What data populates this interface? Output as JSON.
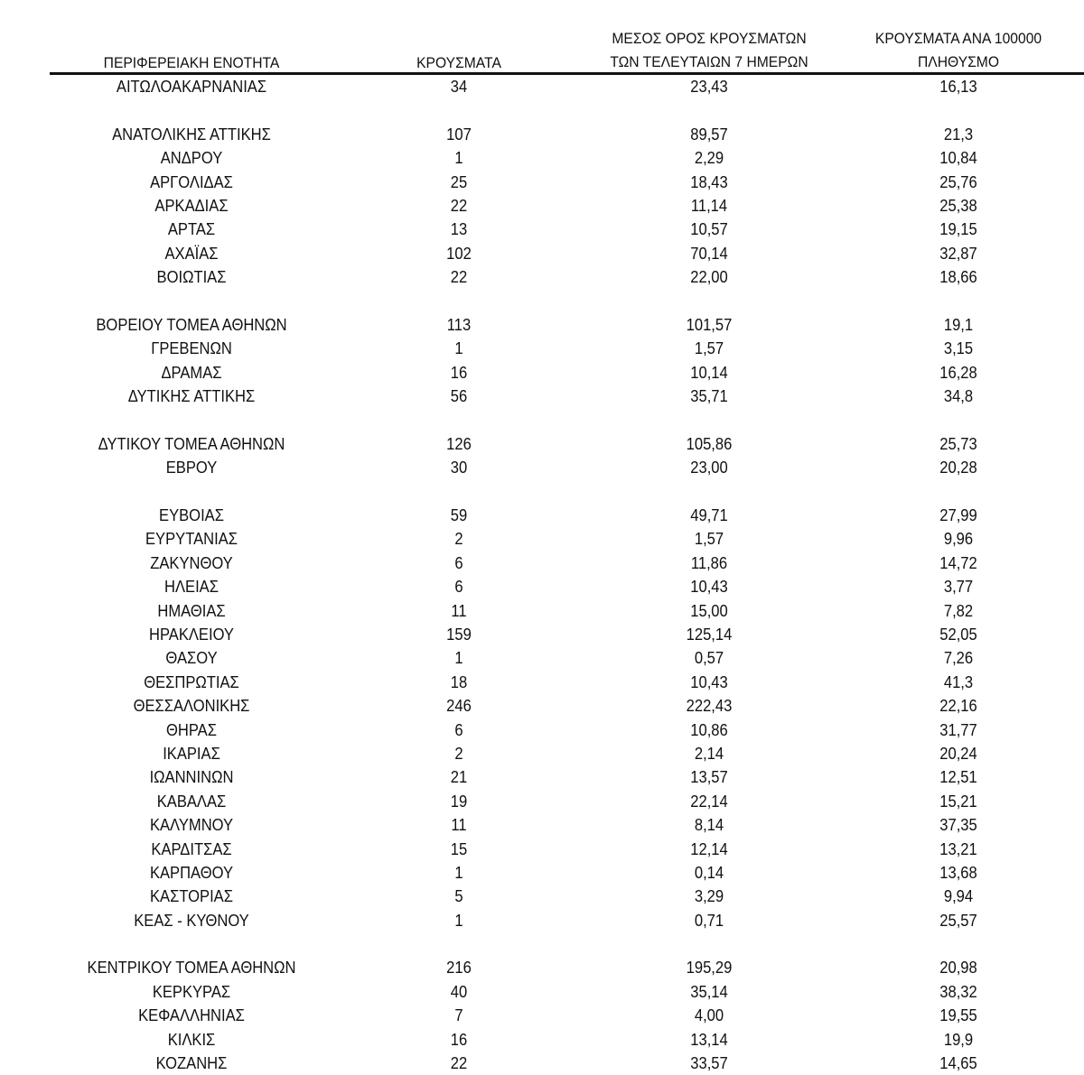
{
  "header": {
    "region": "ΠΕΡΙΦΕΡΕΙΑΚΗ ΕΝΟΤΗΤΑ",
    "cases": "ΚΡΟΥΣΜΑΤΑ",
    "avg_line1": "ΜΕΣΟΣ ΟΡΟΣ ΚΡΟΥΣΜΑΤΩΝ",
    "avg_line2": "ΤΩΝ ΤΕΛΕΥΤΑΙΩΝ 7 ΗΜΕΡΩΝ",
    "per100k_line1": "ΚΡΟΥΣΜΑΤΑ ΑΝΑ 100000",
    "per100k_line2": "ΠΛΗΘΥΣΜΟ"
  },
  "groups": [
    [
      [
        "ΑΙΤΩΛΟΑΚΑΡΝΑΝΙΑΣ",
        "34",
        "23,43",
        "16,13"
      ]
    ],
    [
      [
        "ΑΝΑΤΟΛΙΚΗΣ ΑΤΤΙΚΗΣ",
        "107",
        "89,57",
        "21,3"
      ],
      [
        "ΑΝΔΡΟΥ",
        "1",
        "2,29",
        "10,84"
      ],
      [
        "ΑΡΓΟΛΙΔΑΣ",
        "25",
        "18,43",
        "25,76"
      ],
      [
        "ΑΡΚΑΔΙΑΣ",
        "22",
        "11,14",
        "25,38"
      ],
      [
        "ΑΡΤΑΣ",
        "13",
        "10,57",
        "19,15"
      ],
      [
        "ΑΧΑΪΑΣ",
        "102",
        "70,14",
        "32,87"
      ],
      [
        "ΒΟΙΩΤΙΑΣ",
        "22",
        "22,00",
        "18,66"
      ]
    ],
    [
      [
        "ΒΟΡΕΙΟΥ ΤΟΜΕΑ ΑΘΗΝΩΝ",
        "113",
        "101,57",
        "19,1"
      ],
      [
        "ΓΡΕΒΕΝΩΝ",
        "1",
        "1,57",
        "3,15"
      ],
      [
        "ΔΡΑΜΑΣ",
        "16",
        "10,14",
        "16,28"
      ],
      [
        "ΔΥΤΙΚΗΣ ΑΤΤΙΚΗΣ",
        "56",
        "35,71",
        "34,8"
      ]
    ],
    [
      [
        "ΔΥΤΙΚΟΥ ΤΟΜΕΑ ΑΘΗΝΩΝ",
        "126",
        "105,86",
        "25,73"
      ],
      [
        "ΕΒΡΟΥ",
        "30",
        "23,00",
        "20,28"
      ]
    ],
    [
      [
        "ΕΥΒΟΙΑΣ",
        "59",
        "49,71",
        "27,99"
      ],
      [
        "ΕΥΡΥΤΑΝΙΑΣ",
        "2",
        "1,57",
        "9,96"
      ],
      [
        "ΖΑΚΥΝΘΟΥ",
        "6",
        "11,86",
        "14,72"
      ],
      [
        "ΗΛΕΙΑΣ",
        "6",
        "10,43",
        "3,77"
      ],
      [
        "ΗΜΑΘΙΑΣ",
        "11",
        "15,00",
        "7,82"
      ],
      [
        "ΗΡΑΚΛΕΙΟΥ",
        "159",
        "125,14",
        "52,05"
      ],
      [
        "ΘΑΣΟΥ",
        "1",
        "0,57",
        "7,26"
      ],
      [
        "ΘΕΣΠΡΩΤΙΑΣ",
        "18",
        "10,43",
        "41,3"
      ],
      [
        "ΘΕΣΣΑΛΟΝΙΚΗΣ",
        "246",
        "222,43",
        "22,16"
      ],
      [
        "ΘΗΡΑΣ",
        "6",
        "10,86",
        "31,77"
      ],
      [
        "ΙΚΑΡΙΑΣ",
        "2",
        "2,14",
        "20,24"
      ],
      [
        "ΙΩΑΝΝΙΝΩΝ",
        "21",
        "13,57",
        "12,51"
      ],
      [
        "ΚΑΒΑΛΑΣ",
        "19",
        "22,14",
        "15,21"
      ],
      [
        "ΚΑΛΥΜΝΟΥ",
        "11",
        "8,14",
        "37,35"
      ],
      [
        "ΚΑΡΔΙΤΣΑΣ",
        "15",
        "12,14",
        "13,21"
      ],
      [
        "ΚΑΡΠΑΘΟΥ",
        "1",
        "0,14",
        "13,68"
      ],
      [
        "ΚΑΣΤΟΡΙΑΣ",
        "5",
        "3,29",
        "9,94"
      ],
      [
        "ΚΕΑΣ - ΚΥΘΝΟΥ",
        "1",
        "0,71",
        "25,57"
      ]
    ],
    [
      [
        "ΚΕΝΤΡΙΚΟΥ ΤΟΜΕΑ ΑΘΗΝΩΝ",
        "216",
        "195,29",
        "20,98"
      ],
      [
        "ΚΕΡΚΥΡΑΣ",
        "40",
        "35,14",
        "38,32"
      ],
      [
        "ΚΕΦΑΛΛΗΝΙΑΣ",
        "7",
        "4,00",
        "19,55"
      ],
      [
        "ΚΙΛΚΙΣ",
        "16",
        "13,14",
        "19,9"
      ],
      [
        "ΚΟΖΑΝΗΣ",
        "22",
        "33,57",
        "14,65"
      ]
    ]
  ]
}
